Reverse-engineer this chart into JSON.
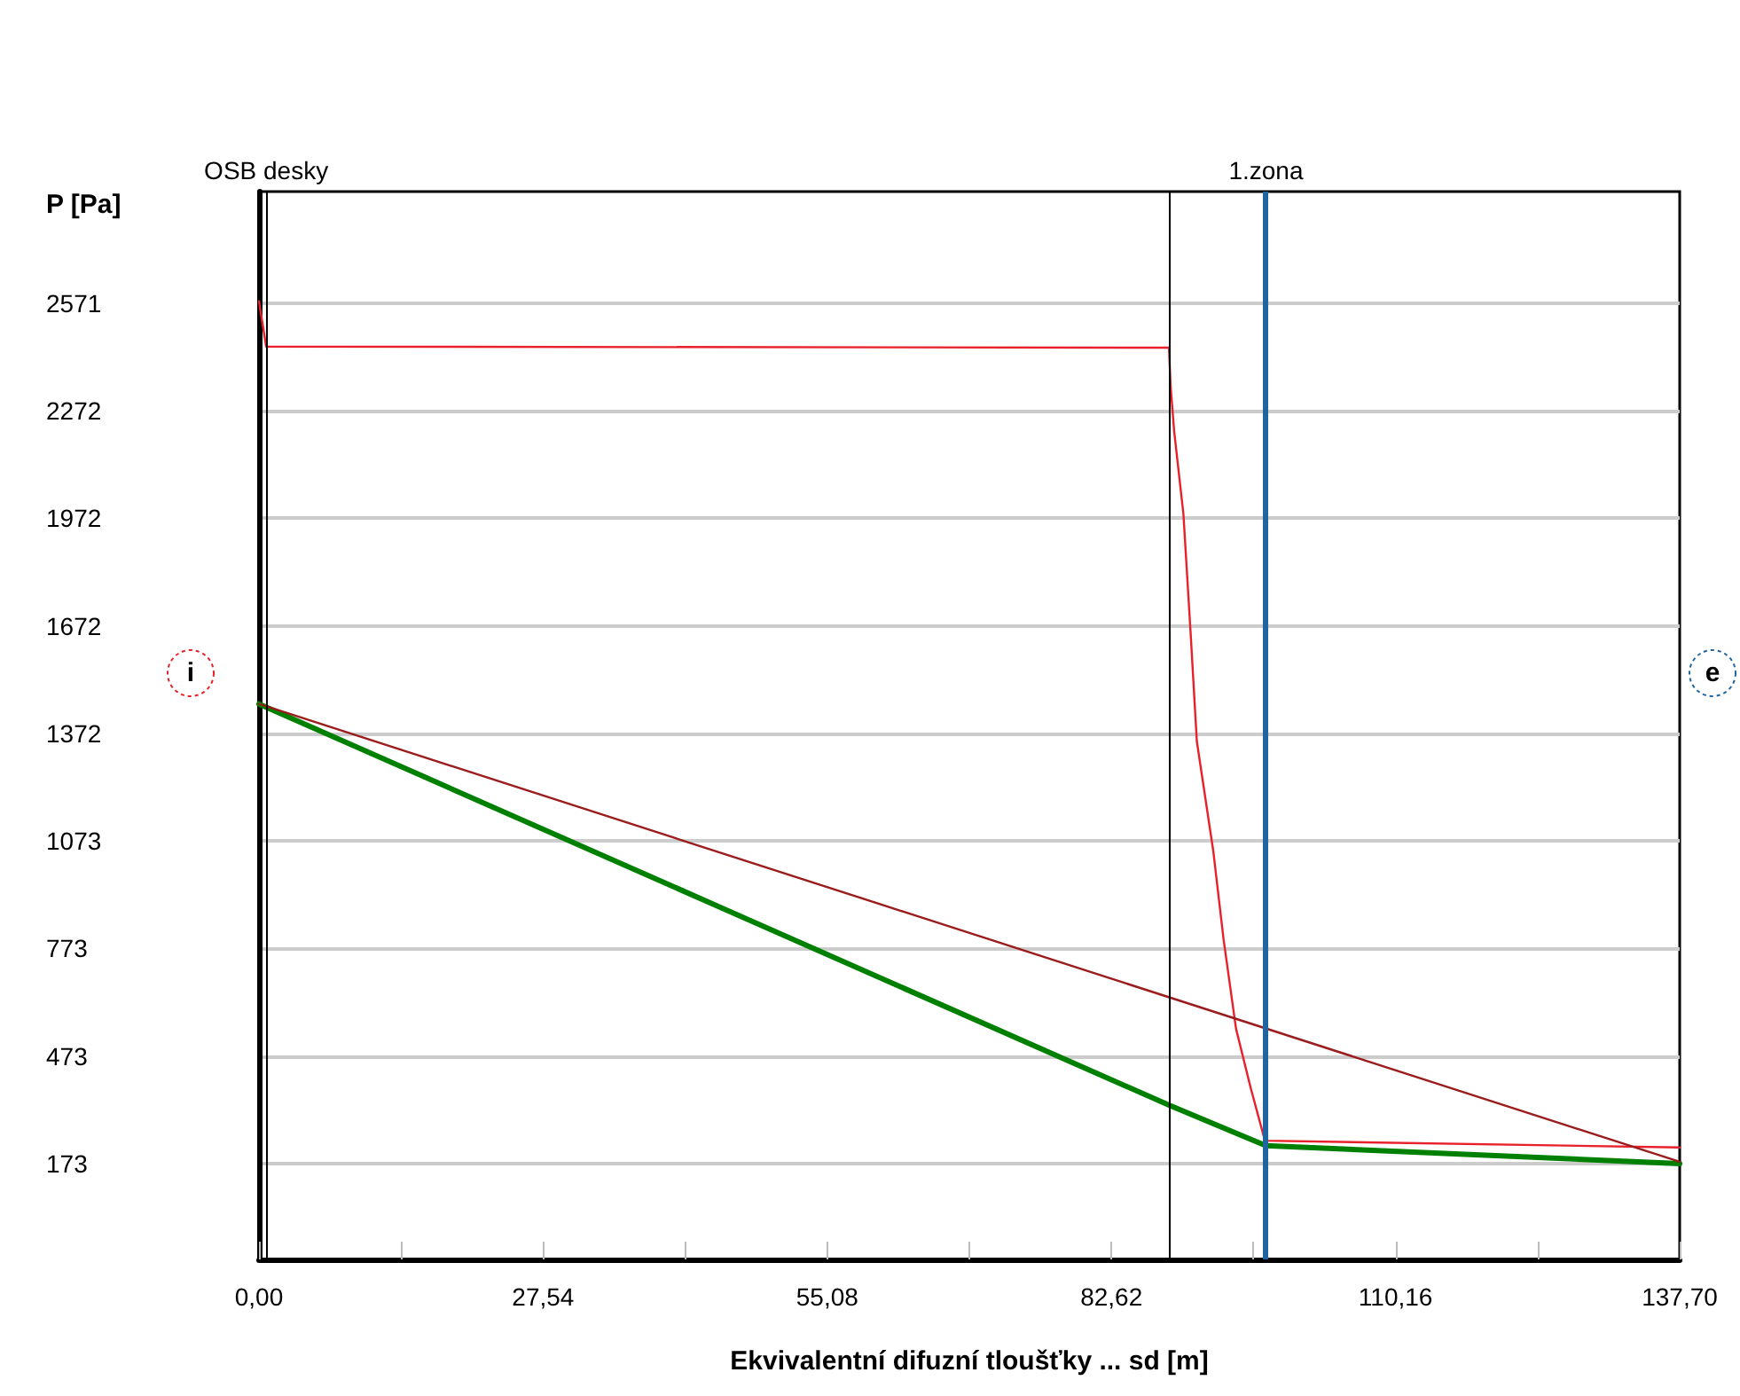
{
  "chart_data": {
    "type": "line",
    "xlabel": "Ekvivalentní difuzní tloušťky ... sd [m]",
    "ylabel": "P [Pa]",
    "xlim": [
      0,
      137.7
    ],
    "ylim": [
      -94,
      2882
    ],
    "xticks": [
      {
        "value": 0,
        "label": "0,00"
      },
      {
        "value": 13.77,
        "label": null
      },
      {
        "value": 27.54,
        "label": "27,54"
      },
      {
        "value": 41.31,
        "label": null
      },
      {
        "value": 55.08,
        "label": "55,08"
      },
      {
        "value": 68.85,
        "label": null
      },
      {
        "value": 82.62,
        "label": "82,62"
      },
      {
        "value": 96.39,
        "label": null
      },
      {
        "value": 110.16,
        "label": "110,16"
      },
      {
        "value": 123.93,
        "label": null
      },
      {
        "value": 137.7,
        "label": "137,70"
      }
    ],
    "yticks": [
      173,
      473,
      773,
      1073,
      1372,
      1672,
      1972,
      2272,
      2571
    ],
    "grid": "y",
    "marker": "none",
    "line_style": "solid",
    "series": [
      {
        "color": "#e8202a",
        "x": [
          0,
          0.7,
          88.2,
          88.36,
          88.7,
          89.6,
          90.3,
          90.9,
          92.5,
          93.5,
          94.7,
          96.1,
          97.5,
          137.7
        ],
        "values": [
          2576,
          2450,
          2447,
          2339,
          2215,
          1983,
          1651,
          1350,
          1043,
          796,
          549,
          386,
          237,
          218
        ]
      },
      {
        "color": "#9b1c1c",
        "x": [
          0,
          137.7
        ],
        "values": [
          1454,
          178
        ]
      },
      {
        "color": "#008000",
        "x": [
          0,
          88.2,
          97.6,
          137.7
        ],
        "values": [
          1454,
          336,
          223,
          173
        ]
      }
    ],
    "ref_lines": [
      {
        "axis": "x",
        "value": 0.7,
        "label": "OSB desky",
        "color": "#000000"
      },
      {
        "axis": "x",
        "value": 88.2,
        "label": null,
        "color": "#000000"
      },
      {
        "axis": "x",
        "value": 97.6,
        "label": "1.zona",
        "color": "#1f66a0"
      }
    ],
    "annotations": [
      "i",
      "e"
    ]
  }
}
